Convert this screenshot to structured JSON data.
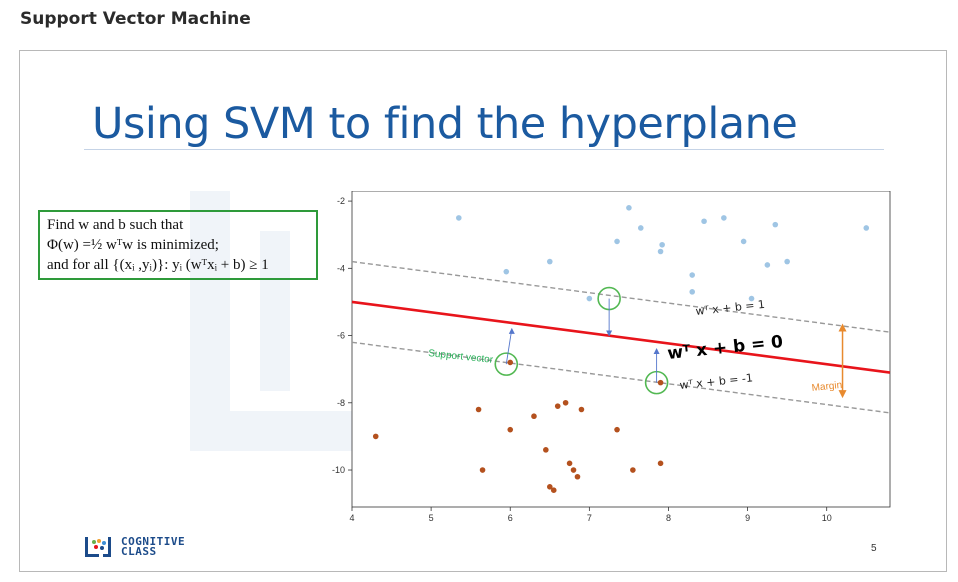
{
  "page": {
    "heading": "Support Vector Machine"
  },
  "slide": {
    "title": "Using SVM to find the hyperplane",
    "formula": {
      "line1": "Find w and b such that",
      "line2": "Φ(w) =½ wᵀw  is minimized;",
      "line3": "and for all {(xᵢ ,yᵢ)}:  yᵢ (wᵀxᵢ + b) ≥ 1"
    },
    "logo_text_1": "COGNITIVE",
    "logo_text_2": "CLASS",
    "slide_number": "5"
  },
  "colors": {
    "title": "#1b5aa0",
    "hyperplane": "#e8141b",
    "margin_line": "#999999",
    "class_pos": "#9fc5e4",
    "class_neg": "#b4511e",
    "support_circle": "#52b852",
    "support_label": "#2bb05a",
    "margin_arrow": "#e88a2e"
  },
  "chart_data": {
    "type": "scatter",
    "title": "",
    "xlabel": "",
    "ylabel": "",
    "xlim": [
      4,
      10.8
    ],
    "ylim": [
      -11.1,
      -1.7
    ],
    "x_ticks": [
      4,
      5,
      6,
      7,
      8,
      9,
      10
    ],
    "y_ticks": [
      -2,
      -4,
      -6,
      -8,
      -10
    ],
    "grid": false,
    "series": [
      {
        "color": "#9fc5e4",
        "points": [
          [
            5.35,
            -2.5
          ],
          [
            5.95,
            -4.1
          ],
          [
            6.5,
            -3.8
          ],
          [
            7.35,
            -3.2
          ],
          [
            7.5,
            -2.2
          ],
          [
            7.65,
            -2.8
          ],
          [
            7.9,
            -3.5
          ],
          [
            7.92,
            -3.3
          ],
          [
            8.2,
            -1.6
          ],
          [
            8.3,
            -4.2
          ],
          [
            8.3,
            -4.7
          ],
          [
            8.45,
            -2.6
          ],
          [
            8.7,
            -2.5
          ],
          [
            8.95,
            -3.2
          ],
          [
            9.05,
            -4.9
          ],
          [
            9.25,
            -3.9
          ],
          [
            9.35,
            -2.7
          ],
          [
            9.5,
            -3.8
          ],
          [
            10.5,
            -2.8
          ],
          [
            7.0,
            -4.9
          ]
        ]
      },
      {
        "color": "#b4511e",
        "points": [
          [
            4.3,
            -9.0
          ],
          [
            5.6,
            -8.2
          ],
          [
            5.65,
            -10.0
          ],
          [
            6.0,
            -8.8
          ],
          [
            6.3,
            -8.4
          ],
          [
            6.45,
            -9.4
          ],
          [
            6.5,
            -10.5
          ],
          [
            6.55,
            -10.6
          ],
          [
            6.6,
            -8.1
          ],
          [
            6.7,
            -8.0
          ],
          [
            6.75,
            -9.8
          ],
          [
            6.8,
            -10.0
          ],
          [
            6.85,
            -10.2
          ],
          [
            6.9,
            -8.2
          ],
          [
            7.35,
            -8.8
          ],
          [
            7.55,
            -10.0
          ],
          [
            7.9,
            -9.8
          ],
          [
            6.0,
            -6.8
          ],
          [
            7.9,
            -7.4
          ]
        ]
      }
    ],
    "lines": [
      {
        "name": "w^T x + b = 0",
        "points": [
          [
            4,
            -5.0
          ],
          [
            10.8,
            -7.1
          ]
        ]
      },
      {
        "name": "w^T x + b = 1",
        "points": [
          [
            4,
            -3.8
          ],
          [
            10.8,
            -5.9
          ]
        ]
      },
      {
        "name": "w^T x + b = -1",
        "points": [
          [
            4,
            -6.2
          ],
          [
            10.8,
            -8.3
          ]
        ]
      }
    ],
    "annotations": {
      "hyperplane_label": "wᵀ x + b = 0",
      "upper_label": "wᵀ x + b = 1",
      "lower_label": "wᵀ x + b = -1",
      "support_label": "Support vector",
      "margin_label": "Margin"
    },
    "support_vectors": [
      [
        7.25,
        -4.9
      ],
      [
        5.95,
        -6.85
      ],
      [
        7.85,
        -7.4
      ]
    ]
  }
}
